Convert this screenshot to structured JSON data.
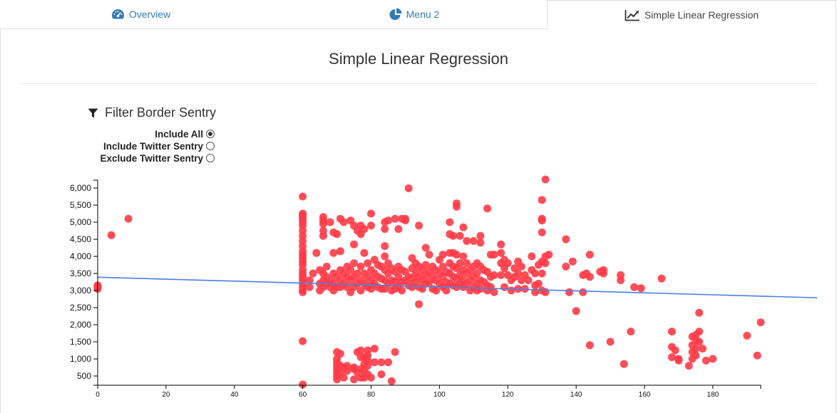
{
  "tabs": [
    {
      "label": "Overview",
      "icon": "dashboard-icon"
    },
    {
      "label": "Menu 2",
      "icon": "pie-chart-icon"
    },
    {
      "label": "Simple Linear Regression",
      "icon": "line-chart-icon"
    }
  ],
  "page_title": "Simple Linear Regression",
  "filter": {
    "title": "Filter Border Sentry",
    "icon": "filter-icon",
    "options": [
      {
        "label": "Include All",
        "checked": true
      },
      {
        "label": "Include Twitter Sentry",
        "checked": false
      },
      {
        "label": "Exclude Twitter Sentry",
        "checked": false
      }
    ]
  },
  "colors": {
    "accent": "#337ab7",
    "point": "#ff3b47",
    "line": "#4a7fe0"
  },
  "chart_data": {
    "type": "scatter",
    "title": "",
    "xlabel": "",
    "ylabel": "",
    "xlim": [
      0,
      194
    ],
    "ylim": [
      230,
      6230
    ],
    "xticks": [
      "0",
      "20",
      "40",
      "60",
      "80",
      "100",
      "120",
      "140",
      "160",
      "180"
    ],
    "yticks": [
      "500",
      "1,000",
      "1,500",
      "2,000",
      "2,500",
      "3,000",
      "3,500",
      "4,000",
      "4,500",
      "5,000",
      "5,500",
      "6,000"
    ],
    "regression": {
      "x1": 0,
      "y1": 3390,
      "x2": 210,
      "y2": 2790
    },
    "points": [
      [
        0,
        3150
      ],
      [
        0,
        3100
      ],
      [
        0,
        3050
      ],
      [
        4,
        4620
      ],
      [
        9,
        5100
      ],
      [
        60,
        5750
      ],
      [
        60,
        5250
      ],
      [
        60,
        5200
      ],
      [
        60,
        5150
      ],
      [
        60,
        5100
      ],
      [
        60,
        5000
      ],
      [
        60,
        4900
      ],
      [
        60,
        4750
      ],
      [
        60,
        4600
      ],
      [
        60,
        4450
      ],
      [
        60,
        4300
      ],
      [
        60,
        4150
      ],
      [
        60,
        4050
      ],
      [
        60,
        3950
      ],
      [
        60,
        3850
      ],
      [
        60,
        3750
      ],
      [
        60,
        3600
      ],
      [
        60,
        3500
      ],
      [
        60,
        3400
      ],
      [
        60,
        3300
      ],
      [
        60,
        3200
      ],
      [
        60,
        3100
      ],
      [
        60,
        3000
      ],
      [
        60,
        2950
      ],
      [
        60,
        1520
      ],
      [
        60,
        250
      ],
      [
        62,
        3300
      ],
      [
        62,
        3100
      ],
      [
        63,
        3500
      ],
      [
        64,
        4100
      ],
      [
        65,
        3600
      ],
      [
        65,
        3200
      ],
      [
        65,
        3000
      ],
      [
        66,
        5150
      ],
      [
        66,
        5050
      ],
      [
        66,
        4950
      ],
      [
        66,
        4750
      ],
      [
        66,
        4600
      ],
      [
        66,
        3500
      ],
      [
        66,
        3300
      ],
      [
        66,
        3100
      ],
      [
        67,
        3700
      ],
      [
        67,
        3400
      ],
      [
        67,
        3200
      ],
      [
        68,
        5000
      ],
      [
        68,
        3300
      ],
      [
        68,
        3100
      ],
      [
        69,
        4700
      ],
      [
        69,
        4100
      ],
      [
        69,
        3500
      ],
      [
        69,
        3200
      ],
      [
        69,
        3000
      ],
      [
        70,
        4650
      ],
      [
        70,
        3400
      ],
      [
        70,
        3100
      ],
      [
        70,
        1200
      ],
      [
        70,
        1000
      ],
      [
        70,
        900
      ],
      [
        70,
        800
      ],
      [
        70,
        700
      ],
      [
        70,
        600
      ],
      [
        70,
        500
      ],
      [
        70,
        400
      ],
      [
        71,
        5100
      ],
      [
        71,
        4150
      ],
      [
        71,
        3600
      ],
      [
        71,
        3300
      ],
      [
        71,
        3100
      ],
      [
        71,
        1150
      ],
      [
        71,
        800
      ],
      [
        71,
        600
      ],
      [
        72,
        5000
      ],
      [
        72,
        3500
      ],
      [
        72,
        3200
      ],
      [
        72,
        750
      ],
      [
        72,
        450
      ],
      [
        73,
        3700
      ],
      [
        73,
        3400
      ],
      [
        73,
        3100
      ],
      [
        73,
        800
      ],
      [
        73,
        650
      ],
      [
        74,
        5050
      ],
      [
        74,
        3600
      ],
      [
        74,
        3300
      ],
      [
        74,
        2950
      ],
      [
        75,
        4900
      ],
      [
        75,
        4350
      ],
      [
        75,
        3800
      ],
      [
        75,
        3400
      ],
      [
        75,
        3100
      ],
      [
        75,
        750
      ],
      [
        75,
        700
      ],
      [
        75,
        400
      ],
      [
        76,
        4750
      ],
      [
        76,
        3500
      ],
      [
        76,
        3200
      ],
      [
        76,
        1200
      ],
      [
        76,
        600
      ],
      [
        77,
        4900
      ],
      [
        77,
        4650
      ],
      [
        77,
        3700
      ],
      [
        77,
        3300
      ],
      [
        77,
        3000
      ],
      [
        77,
        1250
      ],
      [
        77,
        1050
      ],
      [
        77,
        700
      ],
      [
        77,
        450
      ],
      [
        78,
        4800
      ],
      [
        78,
        4100
      ],
      [
        78,
        3500
      ],
      [
        78,
        3200
      ],
      [
        78,
        1050
      ],
      [
        78,
        850
      ],
      [
        78,
        650
      ],
      [
        78,
        450
      ],
      [
        79,
        3800
      ],
      [
        79,
        3400
      ],
      [
        79,
        3100
      ],
      [
        79,
        1250
      ],
      [
        79,
        1100
      ],
      [
        79,
        950
      ],
      [
        79,
        800
      ],
      [
        79,
        550
      ],
      [
        80,
        5250
      ],
      [
        80,
        4900
      ],
      [
        80,
        3600
      ],
      [
        80,
        3300
      ],
      [
        80,
        3050
      ],
      [
        80,
        450
      ],
      [
        81,
        3900
      ],
      [
        81,
        3500
      ],
      [
        81,
        3200
      ],
      [
        81,
        1300
      ],
      [
        81,
        900
      ],
      [
        82,
        3750
      ],
      [
        82,
        3400
      ],
      [
        82,
        3100
      ],
      [
        83,
        3700
      ],
      [
        83,
        3350
      ],
      [
        83,
        3050
      ],
      [
        83,
        900
      ],
      [
        83,
        550
      ],
      [
        84,
        5000
      ],
      [
        84,
        4800
      ],
      [
        84,
        4300
      ],
      [
        84,
        4000
      ],
      [
        84,
        3600
      ],
      [
        84,
        3300
      ],
      [
        84,
        3050
      ],
      [
        85,
        5050
      ],
      [
        85,
        3800
      ],
      [
        85,
        3500
      ],
      [
        85,
        3200
      ],
      [
        85,
        900
      ],
      [
        86,
        3650
      ],
      [
        86,
        3300
      ],
      [
        86,
        3000
      ],
      [
        86,
        350
      ],
      [
        87,
        5100
      ],
      [
        87,
        3550
      ],
      [
        87,
        3250
      ],
      [
        87,
        3050
      ],
      [
        87,
        1200
      ],
      [
        88,
        4800
      ],
      [
        88,
        3700
      ],
      [
        88,
        3400
      ],
      [
        88,
        3100
      ],
      [
        89,
        5100
      ],
      [
        89,
        3600
      ],
      [
        89,
        3250
      ],
      [
        89,
        3000
      ],
      [
        90,
        5100
      ],
      [
        90,
        5050
      ],
      [
        90,
        3550
      ],
      [
        90,
        3300
      ],
      [
        91,
        5990
      ],
      [
        91,
        3400
      ],
      [
        91,
        3150
      ],
      [
        92,
        3950
      ],
      [
        92,
        3650
      ],
      [
        92,
        3350
      ],
      [
        92,
        3100
      ],
      [
        93,
        3800
      ],
      [
        93,
        3500
      ],
      [
        93,
        3250
      ],
      [
        94,
        4900
      ],
      [
        94,
        3700
      ],
      [
        94,
        3400
      ],
      [
        94,
        3100
      ],
      [
        94,
        2600
      ],
      [
        95,
        3600
      ],
      [
        95,
        3300
      ],
      [
        95,
        3050
      ],
      [
        96,
        4250
      ],
      [
        96,
        3750
      ],
      [
        96,
        3450
      ],
      [
        96,
        3200
      ],
      [
        97,
        4050
      ],
      [
        97,
        3550
      ],
      [
        97,
        3250
      ],
      [
        98,
        3700
      ],
      [
        98,
        3400
      ],
      [
        98,
        3050
      ],
      [
        99,
        3600
      ],
      [
        99,
        3300
      ],
      [
        99,
        3000
      ],
      [
        100,
        3900
      ],
      [
        100,
        3500
      ],
      [
        100,
        3200
      ],
      [
        101,
        4050
      ],
      [
        101,
        3700
      ],
      [
        101,
        3400
      ],
      [
        101,
        3100
      ],
      [
        102,
        3550
      ],
      [
        102,
        3250
      ],
      [
        102,
        3000
      ],
      [
        103,
        5000
      ],
      [
        103,
        4650
      ],
      [
        103,
        4100
      ],
      [
        103,
        3800
      ],
      [
        103,
        3500
      ],
      [
        103,
        3200
      ],
      [
        104,
        4600
      ],
      [
        104,
        4100
      ],
      [
        104,
        3700
      ],
      [
        104,
        3400
      ],
      [
        104,
        3150
      ],
      [
        105,
        5550
      ],
      [
        105,
        5450
      ],
      [
        105,
        4050
      ],
      [
        105,
        3650
      ],
      [
        105,
        3350
      ],
      [
        105,
        3100
      ],
      [
        106,
        4600
      ],
      [
        106,
        3800
      ],
      [
        106,
        3450
      ],
      [
        106,
        3200
      ],
      [
        107,
        4850
      ],
      [
        107,
        4000
      ],
      [
        107,
        3600
      ],
      [
        107,
        3300
      ],
      [
        107,
        3100
      ],
      [
        108,
        4450
      ],
      [
        108,
        3800
      ],
      [
        108,
        3500
      ],
      [
        108,
        3200
      ],
      [
        109,
        3600
      ],
      [
        109,
        3300
      ],
      [
        109,
        3000
      ],
      [
        110,
        4450
      ],
      [
        110,
        3700
      ],
      [
        110,
        3400
      ],
      [
        110,
        3100
      ],
      [
        111,
        3800
      ],
      [
        111,
        3500
      ],
      [
        111,
        3200
      ],
      [
        111,
        3000
      ],
      [
        112,
        4600
      ],
      [
        112,
        4400
      ],
      [
        112,
        3700
      ],
      [
        112,
        3300
      ],
      [
        112,
        3050
      ],
      [
        113,
        3600
      ],
      [
        113,
        3250
      ],
      [
        114,
        5400
      ],
      [
        114,
        3550
      ],
      [
        114,
        3150
      ],
      [
        114,
        3000
      ],
      [
        115,
        4050
      ],
      [
        115,
        3400
      ],
      [
        115,
        3100
      ],
      [
        116,
        4050
      ],
      [
        116,
        3450
      ],
      [
        116,
        2950
      ],
      [
        118,
        4350
      ],
      [
        118,
        4100
      ],
      [
        118,
        3800
      ],
      [
        118,
        3450
      ],
      [
        119,
        3900
      ],
      [
        119,
        3650
      ],
      [
        119,
        3100
      ],
      [
        120,
        3800
      ],
      [
        120,
        3450
      ],
      [
        121,
        3300
      ],
      [
        121,
        3000
      ],
      [
        122,
        3650
      ],
      [
        122,
        3400
      ],
      [
        123,
        3850
      ],
      [
        123,
        3500
      ],
      [
        123,
        3050
      ],
      [
        124,
        3700
      ],
      [
        124,
        3300
      ],
      [
        125,
        3450
      ],
      [
        125,
        3050
      ],
      [
        126,
        3300
      ],
      [
        127,
        4000
      ],
      [
        127,
        3600
      ],
      [
        128,
        3500
      ],
      [
        128,
        3150
      ],
      [
        128,
        2950
      ],
      [
        129,
        3750
      ],
      [
        129,
        3200
      ],
      [
        130,
        5650
      ],
      [
        130,
        5100
      ],
      [
        130,
        5050
      ],
      [
        130,
        4700
      ],
      [
        130,
        3850
      ],
      [
        130,
        3500
      ],
      [
        130,
        3000
      ],
      [
        131,
        6250
      ],
      [
        131,
        4000
      ],
      [
        131,
        3800
      ],
      [
        131,
        2950
      ],
      [
        132,
        4050
      ],
      [
        137,
        4500
      ],
      [
        137,
        3700
      ],
      [
        138,
        2950
      ],
      [
        139,
        3850
      ],
      [
        140,
        2400
      ],
      [
        142,
        2950
      ],
      [
        142,
        3450
      ],
      [
        143,
        3500
      ],
      [
        144,
        4050
      ],
      [
        144,
        3400
      ],
      [
        144,
        1400
      ],
      [
        147,
        3550
      ],
      [
        148,
        3600
      ],
      [
        148,
        3500
      ],
      [
        150,
        1500
      ],
      [
        153,
        3450
      ],
      [
        153,
        3300
      ],
      [
        154,
        850
      ],
      [
        156,
        1800
      ],
      [
        157,
        3100
      ],
      [
        159,
        3070
      ],
      [
        165,
        3350
      ],
      [
        168,
        1800
      ],
      [
        168,
        1350
      ],
      [
        168,
        1050
      ],
      [
        169,
        1250
      ],
      [
        170,
        1000
      ],
      [
        170,
        950
      ],
      [
        173,
        800
      ],
      [
        174,
        1650
      ],
      [
        174,
        1400
      ],
      [
        174,
        1200
      ],
      [
        174,
        1000
      ],
      [
        175,
        1700
      ],
      [
        175,
        1550
      ],
      [
        175,
        1300
      ],
      [
        175,
        1100
      ],
      [
        176,
        2350
      ],
      [
        176,
        1800
      ],
      [
        176,
        1500
      ],
      [
        177,
        1300
      ],
      [
        178,
        950
      ],
      [
        180,
        1000
      ],
      [
        190,
        1680
      ],
      [
        193,
        1100
      ],
      [
        194,
        2070
      ]
    ]
  }
}
